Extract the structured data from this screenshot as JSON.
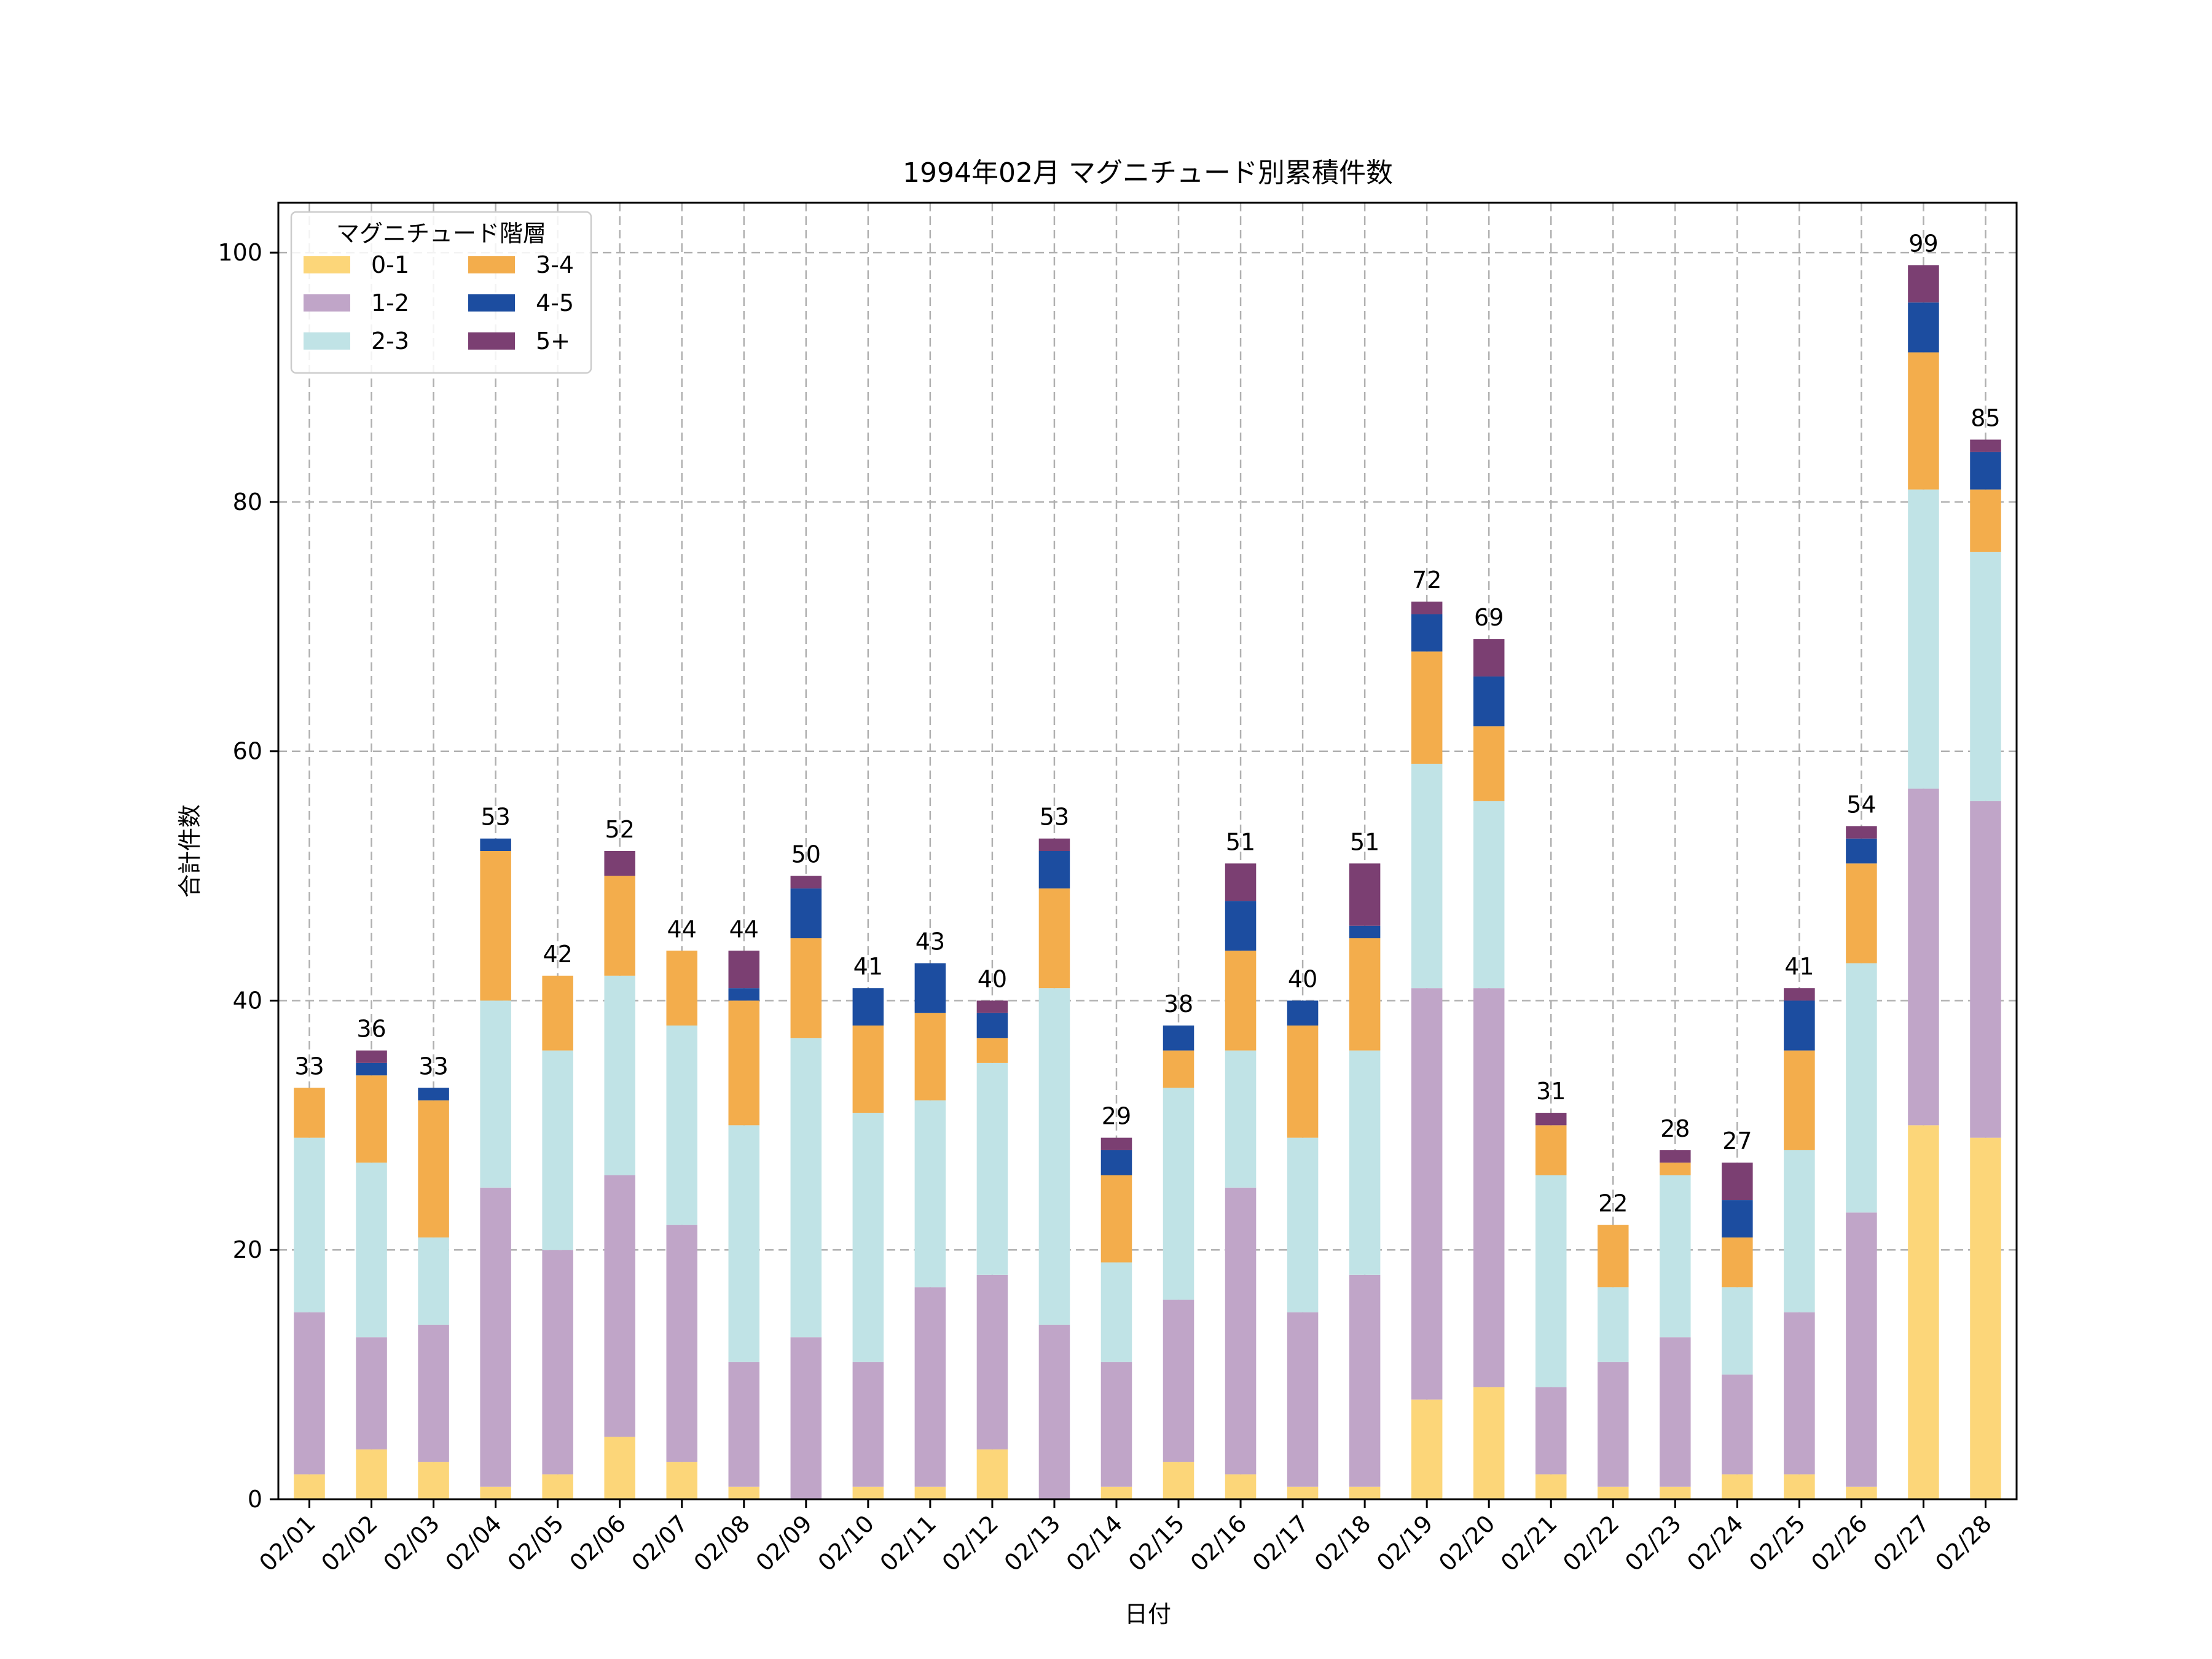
{
  "chart_data": {
    "type": "bar",
    "stacked": true,
    "title": "1994年02月 マグニチュード別累積件数",
    "xlabel": "日付",
    "ylabel": "合計件数",
    "ylim": [
      0,
      104
    ],
    "yticks": [
      0,
      20,
      40,
      60,
      80,
      100
    ],
    "grid": true,
    "legend": {
      "title": "マグニチュード階層",
      "placement": "top-left",
      "columns": 2
    },
    "categories": [
      "02/01",
      "02/02",
      "02/03",
      "02/04",
      "02/05",
      "02/06",
      "02/07",
      "02/08",
      "02/09",
      "02/10",
      "02/11",
      "02/12",
      "02/13",
      "02/14",
      "02/15",
      "02/16",
      "02/17",
      "02/18",
      "02/19",
      "02/20",
      "02/21",
      "02/22",
      "02/23",
      "02/24",
      "02/25",
      "02/26",
      "02/27",
      "02/28"
    ],
    "series": [
      {
        "name": "0-1",
        "color": "#fcd679",
        "values": [
          2,
          4,
          3,
          1,
          2,
          5,
          3,
          1,
          0,
          1,
          1,
          4,
          0,
          1,
          3,
          2,
          1,
          1,
          8,
          9,
          2,
          1,
          1,
          2,
          2,
          1,
          30,
          29
        ]
      },
      {
        "name": "1-2",
        "color": "#c0a5c8",
        "values": [
          13,
          9,
          11,
          24,
          18,
          21,
          19,
          10,
          13,
          10,
          16,
          14,
          14,
          10,
          13,
          23,
          14,
          17,
          33,
          32,
          7,
          10,
          12,
          8,
          13,
          22,
          27,
          27
        ]
      },
      {
        "name": "2-3",
        "color": "#c0e3e6",
        "values": [
          14,
          14,
          7,
          15,
          16,
          16,
          16,
          19,
          24,
          20,
          15,
          17,
          27,
          8,
          17,
          11,
          14,
          18,
          18,
          15,
          17,
          6,
          13,
          7,
          13,
          20,
          24,
          20
        ]
      },
      {
        "name": "3-4",
        "color": "#f3ad4c",
        "values": [
          4,
          7,
          11,
          12,
          6,
          8,
          6,
          10,
          8,
          7,
          7,
          2,
          8,
          7,
          3,
          8,
          9,
          9,
          9,
          6,
          4,
          5,
          1,
          4,
          8,
          8,
          11,
          5
        ]
      },
      {
        "name": "4-5",
        "color": "#1c4da0",
        "values": [
          0,
          1,
          1,
          1,
          0,
          0,
          0,
          1,
          4,
          3,
          4,
          2,
          3,
          2,
          2,
          4,
          2,
          1,
          3,
          4,
          0,
          0,
          0,
          3,
          4,
          2,
          4,
          3
        ]
      },
      {
        "name": "5+",
        "color": "#7b3f72",
        "values": [
          0,
          1,
          0,
          0,
          0,
          2,
          0,
          3,
          1,
          0,
          0,
          1,
          1,
          1,
          0,
          3,
          0,
          5,
          1,
          3,
          1,
          0,
          1,
          3,
          1,
          1,
          3,
          1
        ]
      }
    ],
    "totals": [
      33,
      36,
      33,
      53,
      42,
      52,
      44,
      44,
      50,
      41,
      43,
      40,
      53,
      29,
      38,
      51,
      40,
      51,
      72,
      69,
      31,
      22,
      28,
      27,
      41,
      54,
      99,
      85
    ]
  }
}
